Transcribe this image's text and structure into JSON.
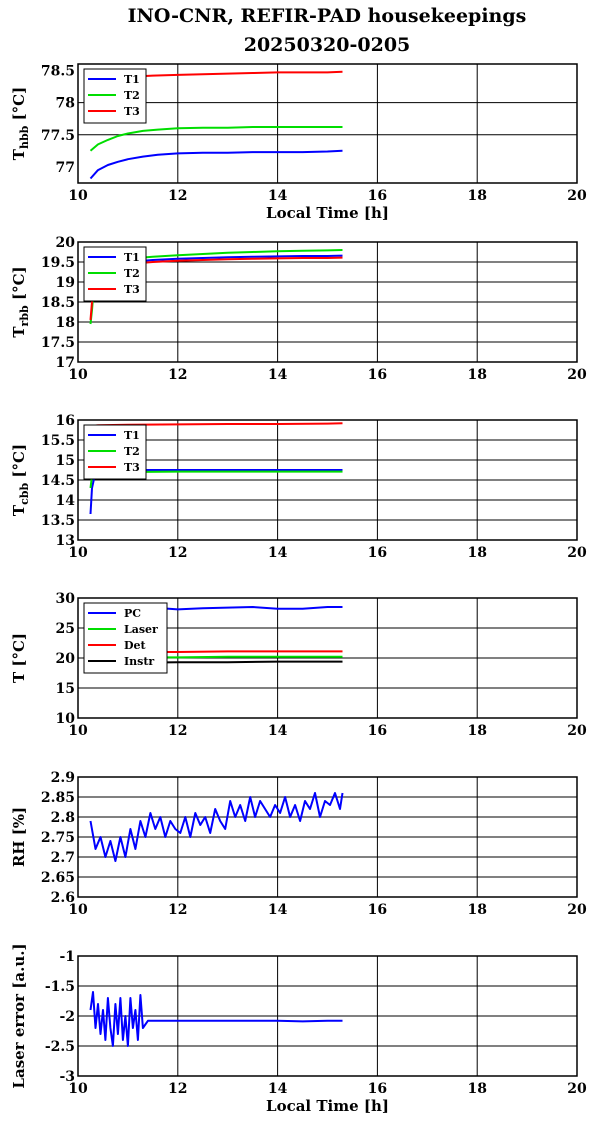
{
  "header": {
    "title_line1": "INO-CNR, REFIR-PAD housekeepings",
    "title_line2": "20250320-0205"
  },
  "colors": {
    "blue": "#0000ff",
    "green": "#00dd00",
    "red": "#ff0000",
    "black": "#000000"
  },
  "chart_data": [
    {
      "type": "line",
      "ylabel": "T",
      "ylabel_sub": "hbb",
      "ylabel_unit": " [°C]",
      "xlabel": "Local Time [h]",
      "xlim": [
        10,
        20
      ],
      "ylim": [
        76.75,
        78.6
      ],
      "xticks": [
        10,
        12,
        14,
        16,
        18,
        20
      ],
      "yticks": [
        77,
        77.5,
        78,
        78.5
      ],
      "ytick_labels": [
        "77",
        "77.5",
        "78",
        "78.5"
      ],
      "grid": true,
      "legend": "top-left",
      "series": [
        {
          "name": "T1",
          "color": "#0000ff",
          "x": [
            10.25,
            10.4,
            10.6,
            10.8,
            11.0,
            11.3,
            11.6,
            12.0,
            12.5,
            13.0,
            13.5,
            14.0,
            14.5,
            15.0,
            15.3
          ],
          "y": [
            76.82,
            76.95,
            77.03,
            77.08,
            77.12,
            77.16,
            77.19,
            77.21,
            77.22,
            77.22,
            77.23,
            77.23,
            77.23,
            77.24,
            77.25
          ]
        },
        {
          "name": "T2",
          "color": "#00dd00",
          "x": [
            10.25,
            10.4,
            10.6,
            10.8,
            11.0,
            11.3,
            11.6,
            12.0,
            12.5,
            13.0,
            13.5,
            14.0,
            14.5,
            15.0,
            15.3
          ],
          "y": [
            77.25,
            77.35,
            77.42,
            77.48,
            77.52,
            77.56,
            77.58,
            77.6,
            77.61,
            77.61,
            77.62,
            77.62,
            77.62,
            77.62,
            77.62
          ]
        },
        {
          "name": "T3",
          "color": "#ff0000",
          "x": [
            10.25,
            10.5,
            11.0,
            11.5,
            12.0,
            12.5,
            13.0,
            13.5,
            14.0,
            14.5,
            15.0,
            15.3
          ],
          "y": [
            78.35,
            78.38,
            78.4,
            78.42,
            78.43,
            78.44,
            78.45,
            78.46,
            78.47,
            78.47,
            78.47,
            78.48
          ]
        }
      ]
    },
    {
      "type": "line",
      "ylabel": "T",
      "ylabel_sub": "rbb",
      "ylabel_unit": " [°C]",
      "xlim": [
        10,
        20
      ],
      "ylim": [
        17,
        20
      ],
      "xticks": [
        10,
        12,
        14,
        16,
        18,
        20
      ],
      "yticks": [
        17,
        17.5,
        18,
        18.5,
        19,
        19.5,
        20
      ],
      "ytick_labels": [
        "17",
        "17.5",
        "18",
        "18.5",
        "19",
        "19.5",
        "20"
      ],
      "grid": true,
      "legend": "top-left",
      "series": [
        {
          "name": "T1",
          "color": "#0000ff",
          "x": [
            10.3,
            10.5,
            11.0,
            11.5,
            12.0,
            12.5,
            13.0,
            13.5,
            14.0,
            14.5,
            15.0,
            15.3
          ],
          "y": [
            19.3,
            19.42,
            19.5,
            19.55,
            19.58,
            19.6,
            19.62,
            19.63,
            19.64,
            19.65,
            19.65,
            19.66
          ]
        },
        {
          "name": "T2",
          "color": "#00dd00",
          "x": [
            10.25,
            10.28,
            10.35,
            10.5,
            11.0,
            11.5,
            12.0,
            12.5,
            13.0,
            13.5,
            14.0,
            14.5,
            15.0,
            15.3
          ],
          "y": [
            17.95,
            18.3,
            19.4,
            19.5,
            19.58,
            19.63,
            19.67,
            19.7,
            19.73,
            19.75,
            19.77,
            19.78,
            19.79,
            19.8
          ]
        },
        {
          "name": "T3",
          "color": "#ff0000",
          "x": [
            10.25,
            10.28,
            10.35,
            10.5,
            11.0,
            11.5,
            12.0,
            12.5,
            13.0,
            13.5,
            14.0,
            14.5,
            15.0,
            15.3
          ],
          "y": [
            18.05,
            18.5,
            19.3,
            19.38,
            19.45,
            19.5,
            19.53,
            19.55,
            19.57,
            19.58,
            19.59,
            19.6,
            19.6,
            19.61
          ]
        }
      ]
    },
    {
      "type": "line",
      "ylabel": "T",
      "ylabel_sub": "cbb",
      "ylabel_unit": " [°C]",
      "xlim": [
        10,
        20
      ],
      "ylim": [
        13,
        16
      ],
      "xticks": [
        10,
        12,
        14,
        16,
        18,
        20
      ],
      "yticks": [
        13,
        13.5,
        14,
        14.5,
        15,
        15.5,
        16
      ],
      "ytick_labels": [
        "13",
        "13.5",
        "14",
        "14.5",
        "15",
        "15.5",
        "16"
      ],
      "grid": true,
      "legend": "top-left",
      "series": [
        {
          "name": "T1",
          "color": "#0000ff",
          "x": [
            10.25,
            10.28,
            10.35,
            10.5,
            11.0,
            12.0,
            13.0,
            14.0,
            15.0,
            15.3
          ],
          "y": [
            13.65,
            14.3,
            14.7,
            14.74,
            14.75,
            14.75,
            14.75,
            14.75,
            14.75,
            14.75
          ]
        },
        {
          "name": "T2",
          "color": "#00dd00",
          "x": [
            10.25,
            10.28,
            10.35,
            10.5,
            11.0,
            12.0,
            13.0,
            14.0,
            15.0,
            15.3
          ],
          "y": [
            14.3,
            14.6,
            14.68,
            14.7,
            14.7,
            14.71,
            14.71,
            14.71,
            14.71,
            14.71
          ]
        },
        {
          "name": "T3",
          "color": "#ff0000",
          "x": [
            10.25,
            10.4,
            11.0,
            12.0,
            13.0,
            14.0,
            15.0,
            15.3
          ],
          "y": [
            15.85,
            15.87,
            15.88,
            15.89,
            15.9,
            15.9,
            15.91,
            15.92
          ]
        }
      ]
    },
    {
      "type": "line",
      "ylabel": "T",
      "ylabel_sub": "",
      "ylabel_unit": " [°C]",
      "xlim": [
        10,
        20
      ],
      "ylim": [
        10,
        30
      ],
      "xticks": [
        10,
        12,
        14,
        16,
        18,
        20
      ],
      "yticks": [
        10,
        15,
        20,
        25,
        30
      ],
      "ytick_labels": [
        "10",
        "15",
        "20",
        "25",
        "30"
      ],
      "grid": true,
      "legend": "top-left",
      "series": [
        {
          "name": "PC",
          "color": "#0000ff",
          "x": [
            10.25,
            11.0,
            11.5,
            12.0,
            12.5,
            13.0,
            13.5,
            14.0,
            14.5,
            15.0,
            15.3
          ],
          "y": [
            28.6,
            28.5,
            28.4,
            28.1,
            28.3,
            28.4,
            28.5,
            28.2,
            28.2,
            28.5,
            28.5
          ]
        },
        {
          "name": "Laser",
          "color": "#00dd00",
          "x": [
            10.25,
            11.0,
            12.0,
            13.0,
            14.0,
            15.0,
            15.3
          ],
          "y": [
            20.2,
            20.1,
            20.1,
            20.2,
            20.2,
            20.2,
            20.2
          ]
        },
        {
          "name": "Det",
          "color": "#ff0000",
          "x": [
            10.25,
            11.0,
            12.0,
            13.0,
            14.0,
            15.0,
            15.3
          ],
          "y": [
            21.0,
            21.0,
            21.0,
            21.1,
            21.1,
            21.1,
            21.1
          ]
        },
        {
          "name": "Instr",
          "color": "#000000",
          "x": [
            10.25,
            11.0,
            12.0,
            13.0,
            14.0,
            15.0,
            15.3
          ],
          "y": [
            19.2,
            19.2,
            19.3,
            19.3,
            19.4,
            19.4,
            19.4
          ]
        }
      ]
    },
    {
      "type": "line",
      "ylabel": "RH [%]",
      "ylabel_sub": "",
      "ylabel_unit": "",
      "xlim": [
        10,
        20
      ],
      "ylim": [
        2.6,
        2.9
      ],
      "xticks": [
        10,
        12,
        14,
        16,
        18,
        20
      ],
      "yticks": [
        2.6,
        2.65,
        2.7,
        2.75,
        2.8,
        2.85,
        2.9
      ],
      "ytick_labels": [
        "2.6",
        "2.65",
        "2.7",
        "2.75",
        "2.8",
        "2.85",
        "2.9"
      ],
      "grid": true,
      "series": [
        {
          "name": "",
          "color": "#0000ff",
          "x": [
            10.25,
            10.35,
            10.45,
            10.55,
            10.65,
            10.75,
            10.85,
            10.95,
            11.05,
            11.15,
            11.25,
            11.35,
            11.45,
            11.55,
            11.65,
            11.75,
            11.85,
            11.95,
            12.05,
            12.15,
            12.25,
            12.35,
            12.45,
            12.55,
            12.65,
            12.75,
            12.85,
            12.95,
            13.05,
            13.15,
            13.25,
            13.35,
            13.45,
            13.55,
            13.65,
            13.75,
            13.85,
            13.95,
            14.05,
            14.15,
            14.25,
            14.35,
            14.45,
            14.55,
            14.65,
            14.75,
            14.85,
            14.95,
            15.05,
            15.15,
            15.25,
            15.3
          ],
          "y": [
            2.79,
            2.72,
            2.75,
            2.7,
            2.74,
            2.69,
            2.75,
            2.7,
            2.77,
            2.72,
            2.79,
            2.75,
            2.81,
            2.77,
            2.8,
            2.75,
            2.79,
            2.77,
            2.76,
            2.8,
            2.75,
            2.81,
            2.78,
            2.8,
            2.76,
            2.82,
            2.79,
            2.77,
            2.84,
            2.8,
            2.83,
            2.79,
            2.85,
            2.8,
            2.84,
            2.82,
            2.8,
            2.83,
            2.81,
            2.85,
            2.8,
            2.83,
            2.79,
            2.84,
            2.82,
            2.86,
            2.8,
            2.84,
            2.83,
            2.86,
            2.82,
            2.86
          ]
        }
      ]
    },
    {
      "type": "line",
      "ylabel": "Laser error [a.u.]",
      "ylabel_sub": "",
      "ylabel_unit": "",
      "xlabel": "Local Time [h]",
      "xlim": [
        10,
        20
      ],
      "ylim": [
        -3,
        -1
      ],
      "xticks": [
        10,
        12,
        14,
        16,
        18,
        20
      ],
      "yticks": [
        -3,
        -2.5,
        -2,
        -1.5,
        -1
      ],
      "ytick_labels": [
        "-3",
        "-2.5",
        "-2",
        "-1.5",
        "-1"
      ],
      "grid": true,
      "series": [
        {
          "name": "",
          "color": "#0000ff",
          "x": [
            10.25,
            10.3,
            10.35,
            10.4,
            10.45,
            10.5,
            10.55,
            10.6,
            10.65,
            10.7,
            10.75,
            10.8,
            10.85,
            10.9,
            10.95,
            11.0,
            11.05,
            11.1,
            11.15,
            11.2,
            11.25,
            11.3,
            11.4,
            12.0,
            12.5,
            13.0,
            13.5,
            14.0,
            14.5,
            15.0,
            15.3
          ],
          "y": [
            -1.9,
            -1.6,
            -2.2,
            -1.8,
            -2.3,
            -1.9,
            -2.4,
            -1.7,
            -2.2,
            -2.5,
            -1.8,
            -2.3,
            -1.7,
            -2.4,
            -2.0,
            -2.5,
            -1.7,
            -2.2,
            -1.9,
            -2.4,
            -1.65,
            -2.2,
            -2.08,
            -2.08,
            -2.08,
            -2.08,
            -2.08,
            -2.08,
            -2.09,
            -2.08,
            -2.08
          ]
        }
      ]
    }
  ]
}
